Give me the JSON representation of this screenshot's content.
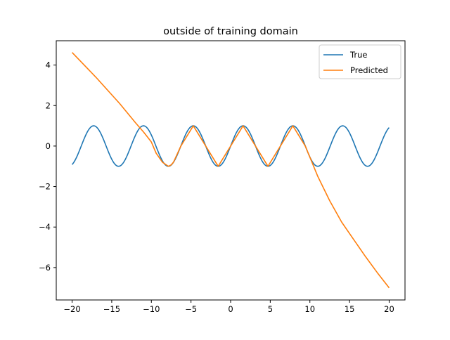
{
  "chart_data": {
    "type": "line",
    "title": "outside of training domain",
    "xlabel": "",
    "ylabel": "",
    "xlim": [
      -22,
      22
    ],
    "ylim": [
      -7.6,
      5.2
    ],
    "xticks": [
      -20,
      -15,
      -10,
      -5,
      0,
      5,
      10,
      15,
      20
    ],
    "yticks": [
      -6,
      -4,
      -2,
      0,
      2,
      4
    ],
    "xtick_labels": [
      "−20",
      "−15",
      "−10",
      "−5",
      "0",
      "5",
      "10",
      "15",
      "20"
    ],
    "ytick_labels": [
      "−6",
      "−4",
      "−2",
      "0",
      "2",
      "4"
    ],
    "grid": false,
    "legend_position": "upper right",
    "series": [
      {
        "name": "True",
        "color": "#1f77b4",
        "function": "sin(x)",
        "x_range": [
          -20,
          20
        ]
      },
      {
        "name": "Predicted",
        "color": "#ff7f0e",
        "x": [
          -20,
          -17,
          -14,
          -12,
          -11,
          -10.5,
          -10,
          -9.4,
          -8.6,
          -7.85,
          -7.5,
          -7.2,
          -6.28,
          -4.71,
          -3.14,
          -1.57,
          0,
          1.57,
          3.14,
          4.71,
          6.28,
          7.85,
          9.42,
          11,
          12.5,
          14,
          15.5,
          17,
          18.5,
          20
        ],
        "values": [
          4.62,
          3.4,
          2.1,
          1.15,
          0.7,
          0.45,
          0.2,
          -0.35,
          -0.8,
          -1.0,
          -0.93,
          -0.79,
          0.0,
          1.0,
          0.0,
          -1.0,
          0.0,
          1.0,
          0.0,
          -1.0,
          0.0,
          1.0,
          0.0,
          -1.5,
          -2.7,
          -3.75,
          -4.6,
          -5.45,
          -6.25,
          -7.0
        ]
      }
    ]
  }
}
